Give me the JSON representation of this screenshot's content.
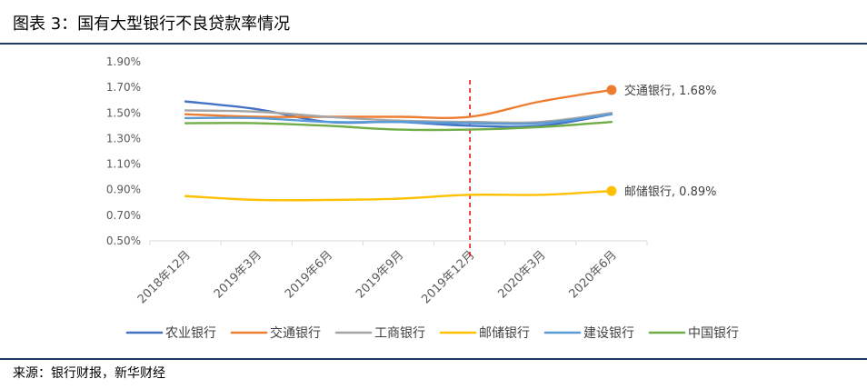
{
  "header": {
    "title": "图表 3：国有大型银行不良贷款率情况"
  },
  "footer": {
    "source": "来源：银行财报，新华财经"
  },
  "chart_data": {
    "type": "line",
    "title": "",
    "xlabel": "",
    "ylabel": "",
    "categories": [
      "2018年12月",
      "2019年3月",
      "2019年6月",
      "2019年9月",
      "2019年12月",
      "2020年3月",
      "2020年6月"
    ],
    "ylim": [
      0.5,
      1.9
    ],
    "yticks": [
      "0.50%",
      "0.70%",
      "0.90%",
      "1.10%",
      "1.30%",
      "1.50%",
      "1.70%",
      "1.90%"
    ],
    "grid": false,
    "legend_position": "bottom",
    "marker_line": {
      "after_category": "2019年12月",
      "color": "#e31a1c",
      "style": "dashed"
    },
    "series": [
      {
        "name": "农业银行",
        "color": "#4472c4",
        "values": [
          1.59,
          1.53,
          1.43,
          1.43,
          1.4,
          1.4,
          1.49
        ]
      },
      {
        "name": "交通银行",
        "color": "#ed7d31",
        "values": [
          1.49,
          1.47,
          1.47,
          1.47,
          1.47,
          1.59,
          1.68
        ]
      },
      {
        "name": "工商银行",
        "color": "#a5a5a5",
        "values": [
          1.52,
          1.51,
          1.47,
          1.44,
          1.43,
          1.43,
          1.5
        ]
      },
      {
        "name": "邮储银行",
        "color": "#ffc000",
        "values": [
          0.85,
          0.82,
          0.82,
          0.83,
          0.86,
          0.86,
          0.89
        ]
      },
      {
        "name": "建设银行",
        "color": "#5b9bd5",
        "values": [
          1.46,
          1.46,
          1.43,
          1.43,
          1.42,
          1.42,
          1.49
        ]
      },
      {
        "name": "中国银行",
        "color": "#70ad47",
        "values": [
          1.42,
          1.42,
          1.4,
          1.37,
          1.37,
          1.39,
          1.43
        ]
      }
    ],
    "annotations": [
      {
        "series": "交通银行",
        "text": "交通银行, 1.68%"
      },
      {
        "series": "邮储银行",
        "text": "邮储银行, 0.89%"
      }
    ]
  }
}
